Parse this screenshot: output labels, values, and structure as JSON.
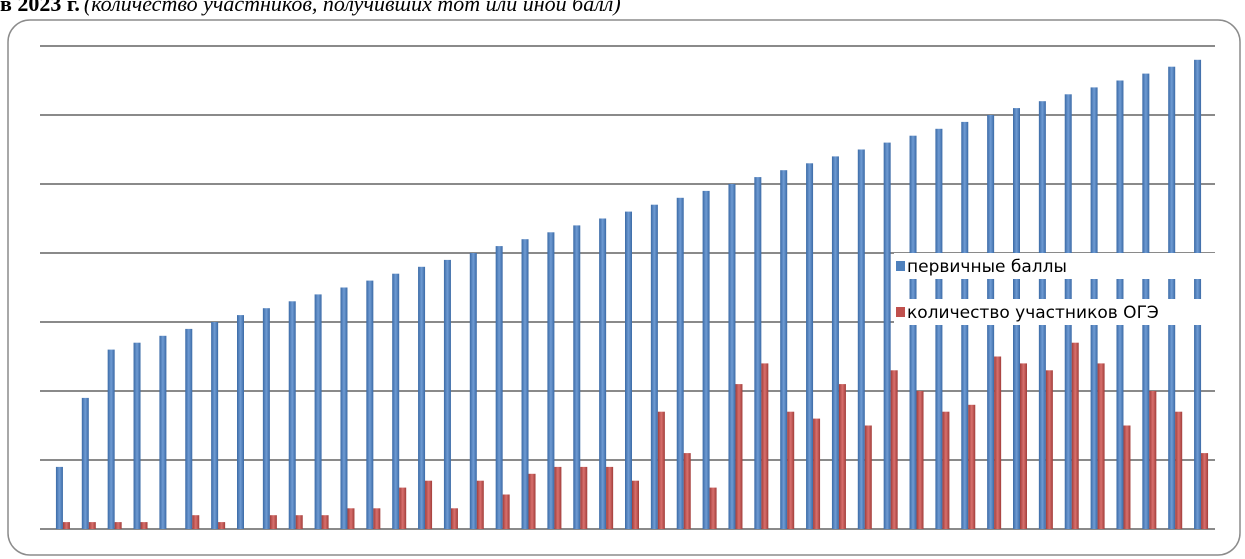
{
  "chart_data": {
    "type": "bar",
    "title": "в 2023 г.",
    "subtitle": "(количество участников, получивших тот или иной балл)",
    "series": [
      {
        "name": "первичные баллы",
        "color": "#4f81bd",
        "values": [
          9,
          19,
          26,
          27,
          28,
          29,
          30,
          31,
          32,
          33,
          34,
          35,
          36,
          37,
          38,
          39,
          40,
          41,
          42,
          43,
          44,
          45,
          46,
          47,
          48,
          49,
          50,
          51,
          52,
          53,
          54,
          55,
          56,
          57,
          58,
          59,
          60,
          61,
          62,
          63,
          64,
          65,
          66,
          67,
          68
        ]
      },
      {
        "name": "количество участников ОГЭ",
        "color": "#c0504d",
        "values": [
          1,
          1,
          1,
          1,
          0,
          2,
          1,
          0,
          2,
          2,
          2,
          3,
          3,
          6,
          7,
          3,
          7,
          5,
          8,
          9,
          9,
          9,
          7,
          17,
          11,
          6,
          21,
          24,
          17,
          16,
          21,
          15,
          23,
          20,
          17,
          18,
          25,
          24,
          23,
          27,
          24,
          15,
          20,
          17,
          11
        ]
      }
    ],
    "ylim": [
      0,
      70
    ],
    "yticks": [
      0,
      10,
      20,
      30,
      40,
      50,
      60,
      70
    ],
    "grid": true,
    "legend": "right"
  }
}
